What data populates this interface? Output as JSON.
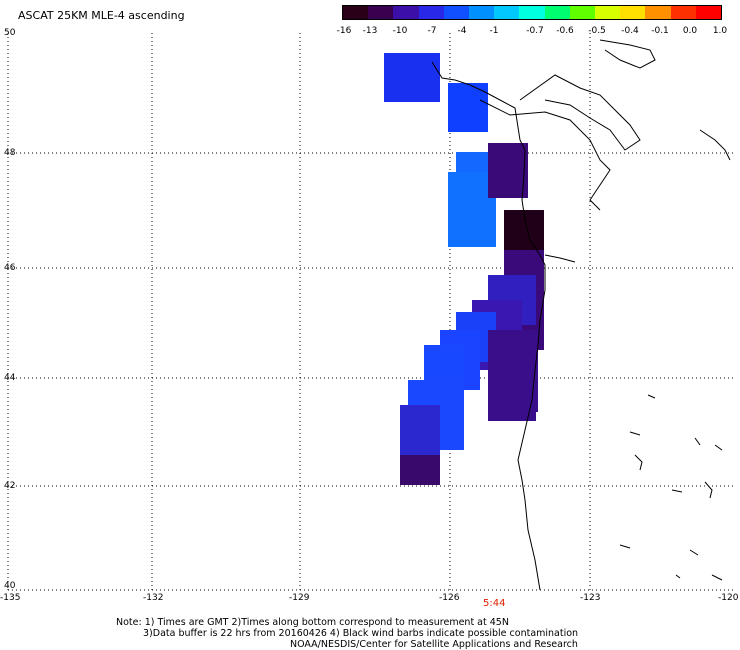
{
  "title": "ASCAT 25KM MLE-4 ascending",
  "colorbar": {
    "labels": [
      "-16",
      "-13",
      "-10",
      "-7",
      "-4",
      "-1",
      "-0.7",
      "-0.6",
      "-0.5",
      "-0.4",
      "-0.1",
      "0.0",
      "1.0"
    ],
    "colors": [
      "#2a0018",
      "#3a0050",
      "#3c10a8",
      "#2a28e8",
      "#1050ff",
      "#0090ff",
      "#00c8ff",
      "#00ffe0",
      "#00ff70",
      "#60ff00",
      "#d8ff00",
      "#ffe000",
      "#ff9000",
      "#ff3000",
      "#ff0000"
    ]
  },
  "axes": {
    "x_labels": [
      "-135",
      "-132",
      "-129",
      "-126",
      "-123",
      "-120"
    ],
    "y_labels": [
      "50",
      "48",
      "46",
      "44",
      "42",
      "40"
    ]
  },
  "time_label": "5:44",
  "notes": {
    "line1": "Note: 1) Times are GMT 2)Times along bottom correspond to measurement at 45N",
    "line2": "3)Data buffer is 22 hrs from 20160426 4) Black wind barbs indicate possible contamination",
    "line3": "NOAA/NESDIS/Center for Satellite Applications and Research"
  },
  "colors": {
    "grid": "#000000",
    "coast": "#000000",
    "time": "#e02000"
  }
}
